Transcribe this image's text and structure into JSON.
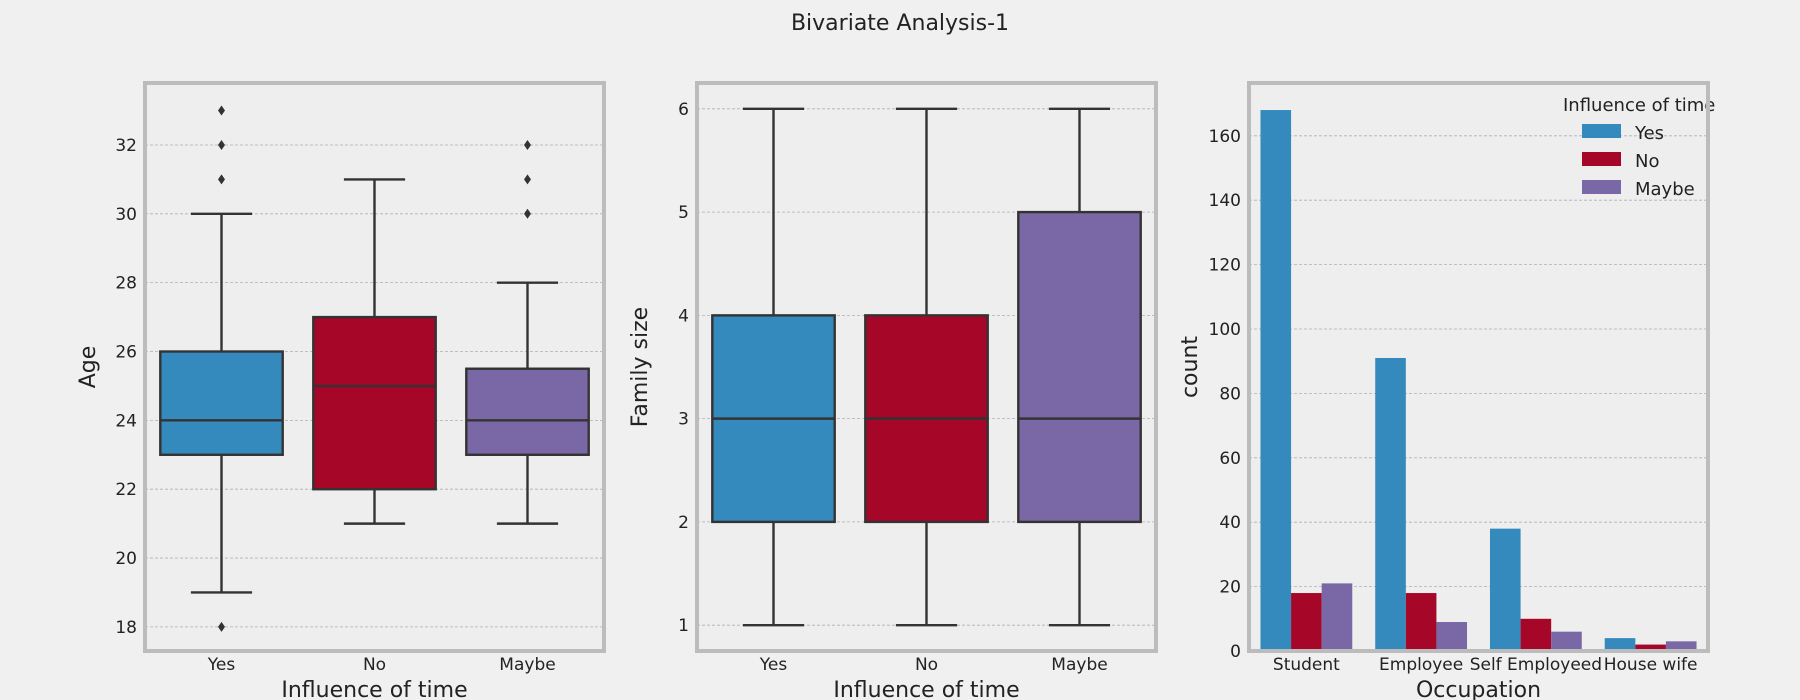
{
  "figure": {
    "title": "Bivariate Analysis-1"
  },
  "colors": {
    "background": "#f0f0f0",
    "axes_bg": "#eeeeee",
    "frame": "#bcbcbc",
    "grid": "#b0b0b0",
    "line": "#333333",
    "series": [
      "#348abd",
      "#a60628",
      "#7a68a6"
    ]
  },
  "chart_data": [
    {
      "type": "box",
      "xlabel": "Influence of time",
      "ylabel": "Age",
      "categories": [
        "Yes",
        "No",
        "Maybe"
      ],
      "ylim": [
        17.3,
        33.8
      ],
      "yticks": [
        18,
        20,
        22,
        24,
        26,
        28,
        30,
        32
      ],
      "grid": true,
      "boxes": [
        {
          "category": "Yes",
          "whisker_low": 19,
          "q1": 23,
          "median": 24,
          "q3": 26,
          "whisker_high": 30,
          "outliers": [
            18,
            31,
            32,
            33
          ]
        },
        {
          "category": "No",
          "whisker_low": 21,
          "q1": 22,
          "median": 25,
          "q3": 27,
          "whisker_high": 31,
          "outliers": []
        },
        {
          "category": "Maybe",
          "whisker_low": 21,
          "q1": 23,
          "median": 24,
          "q3": 25.5,
          "whisker_high": 28,
          "outliers": [
            30,
            31,
            32
          ]
        }
      ]
    },
    {
      "type": "box",
      "xlabel": "Influence of time",
      "ylabel": "Family size",
      "categories": [
        "Yes",
        "No",
        "Maybe"
      ],
      "ylim": [
        0.75,
        6.25
      ],
      "yticks": [
        1,
        2,
        3,
        4,
        5,
        6
      ],
      "grid": true,
      "boxes": [
        {
          "category": "Yes",
          "whisker_low": 1,
          "q1": 2,
          "median": 3,
          "q3": 4,
          "whisker_high": 6,
          "outliers": []
        },
        {
          "category": "No",
          "whisker_low": 1,
          "q1": 2,
          "median": 3,
          "q3": 4,
          "whisker_high": 6,
          "outliers": []
        },
        {
          "category": "Maybe",
          "whisker_low": 1,
          "q1": 2,
          "median": 3,
          "q3": 5,
          "whisker_high": 6,
          "outliers": []
        }
      ]
    },
    {
      "type": "bar",
      "xlabel": "Occupation",
      "ylabel": "count",
      "categories": [
        "Student",
        "Employee",
        "Self Employeed",
        "House wife"
      ],
      "ylim": [
        0,
        176.4
      ],
      "yticks": [
        0,
        20,
        40,
        60,
        80,
        100,
        120,
        140,
        160
      ],
      "grid": true,
      "legend": {
        "title": "Influence of time",
        "placement": "top-right"
      },
      "series": [
        {
          "name": "Yes",
          "values": [
            168,
            91,
            38,
            4
          ]
        },
        {
          "name": "No",
          "values": [
            18,
            18,
            10,
            2
          ]
        },
        {
          "name": "Maybe",
          "values": [
            21,
            9,
            6,
            3
          ]
        }
      ]
    }
  ]
}
